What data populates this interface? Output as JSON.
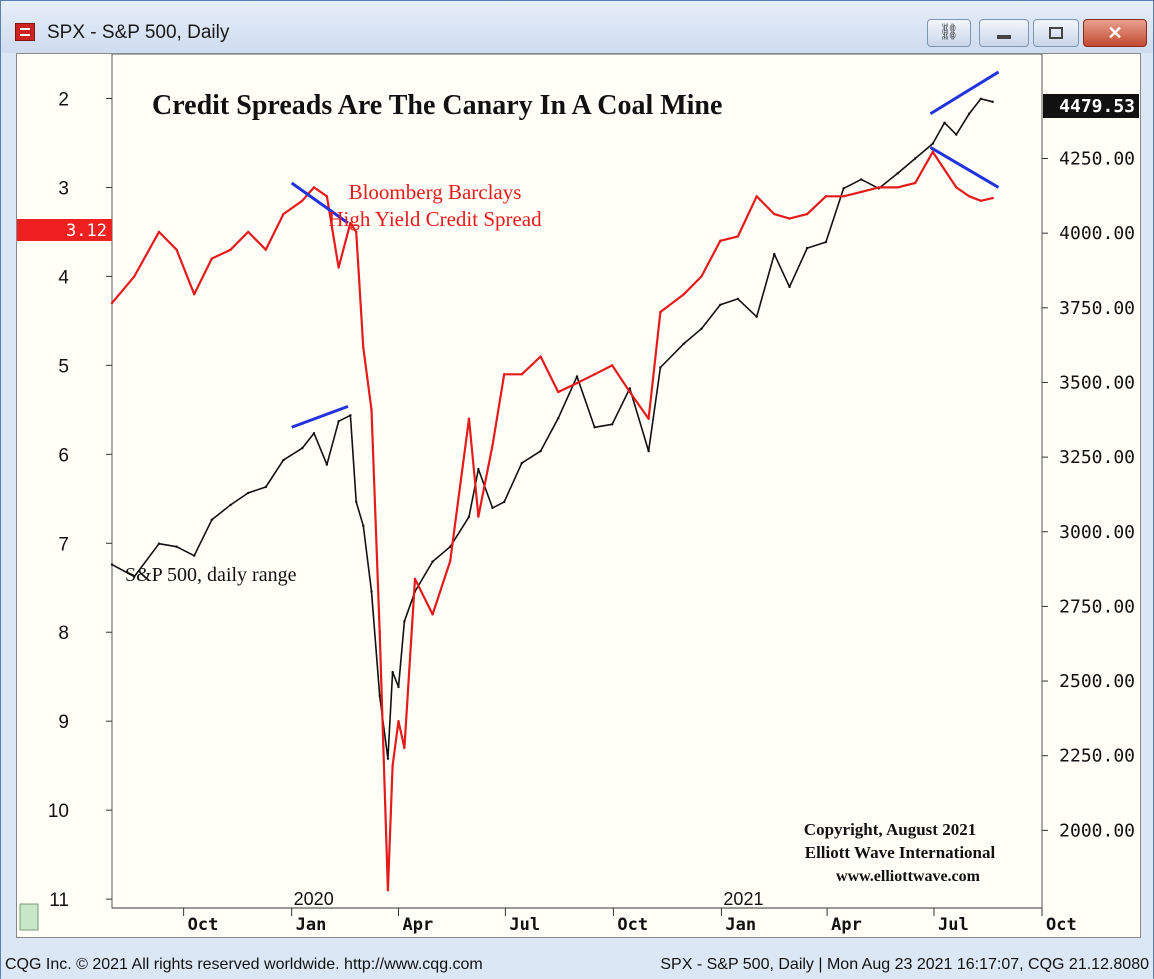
{
  "window": {
    "title": "SPX - S&P 500, Daily",
    "icons": [
      "chart-app-icon",
      "link-icon",
      "minimize-icon",
      "maximize-icon",
      "close-icon"
    ]
  },
  "status": {
    "left": "CQG Inc. © 2021 All rights reserved worldwide. http://www.cqg.com",
    "right": "SPX - S&P 500, Daily | Mon Aug 23 2021 16:17:07, CQG 21.12.8080"
  },
  "colors": {
    "spread_red": "#e41b1b",
    "spx_black": "#111111",
    "trendline_blue": "#2233dd",
    "price_box": "#111111",
    "spread_box": "#ee2020"
  },
  "chart_data": {
    "type": "line",
    "title": "Credit Spreads Are The Canary In A Coal Mine",
    "annotations": {
      "spread_label_1": "Bloomberg Barclays",
      "spread_label_2": "High Yield Credit Spread",
      "spx_label": "S&P 500, daily range",
      "copyright_1": "Copyright, August 2021",
      "copyright_2": "Elliott Wave International",
      "copyright_3": "www.elliottwave.com"
    },
    "x_tick_labels": [
      "Oct",
      "Jan",
      "Apr",
      "Jul",
      "Oct",
      "Jan",
      "Apr",
      "Jul",
      "Oct"
    ],
    "x_year_labels": [
      "2020",
      "2021"
    ],
    "x_range": [
      "2019-08",
      "2021-10"
    ],
    "left_axis": {
      "inverted": true,
      "range": [
        1.5,
        11.1
      ],
      "ticks": [
        "2",
        "3",
        "4",
        "5",
        "6",
        "7",
        "8",
        "9",
        "10",
        "11"
      ]
    },
    "right_axis": {
      "range": [
        1740,
        4600
      ],
      "ticks": [
        "4250.00",
        "4000.00",
        "3750.00",
        "3500.00",
        "3250.00",
        "3000.00",
        "2750.00",
        "2500.00",
        "2250.00",
        "2000.00"
      ]
    },
    "last_values": {
      "spx": "4479.53",
      "spread": "3.12"
    },
    "grid": false,
    "series": [
      {
        "name": "Bloomberg Barclays High Yield Credit Spread",
        "axis": "left",
        "x": [
          "2019-08-01",
          "2019-08-20",
          "2019-09-10",
          "2019-09-25",
          "2019-10-10",
          "2019-10-25",
          "2019-11-10",
          "2019-11-25",
          "2019-12-10",
          "2019-12-25",
          "2020-01-10",
          "2020-01-20",
          "2020-01-31",
          "2020-02-10",
          "2020-02-20",
          "2020-02-25",
          "2020-03-02",
          "2020-03-09",
          "2020-03-16",
          "2020-03-23",
          "2020-03-27",
          "2020-04-01",
          "2020-04-06",
          "2020-04-15",
          "2020-04-30",
          "2020-05-15",
          "2020-05-31",
          "2020-06-08",
          "2020-06-20",
          "2020-06-30",
          "2020-07-15",
          "2020-07-31",
          "2020-08-15",
          "2020-08-31",
          "2020-09-15",
          "2020-09-30",
          "2020-10-15",
          "2020-10-31",
          "2020-11-10",
          "2020-11-30",
          "2020-12-15",
          "2020-12-31",
          "2021-01-15",
          "2021-01-31",
          "2021-02-15",
          "2021-02-28",
          "2021-03-15",
          "2021-03-31",
          "2021-04-15",
          "2021-04-30",
          "2021-05-15",
          "2021-05-31",
          "2021-06-15",
          "2021-06-30",
          "2021-07-10",
          "2021-07-20",
          "2021-07-31",
          "2021-08-10",
          "2021-08-20"
        ],
        "values": [
          4.3,
          4.0,
          3.5,
          3.7,
          4.2,
          3.8,
          3.7,
          3.5,
          3.7,
          3.3,
          3.15,
          3.0,
          3.1,
          3.9,
          3.4,
          3.5,
          4.8,
          5.5,
          8.0,
          10.9,
          9.5,
          9.0,
          9.3,
          7.4,
          7.8,
          7.2,
          5.6,
          6.7,
          5.9,
          5.1,
          5.1,
          4.9,
          5.3,
          5.2,
          5.1,
          5.0,
          5.3,
          5.6,
          4.4,
          4.2,
          4.0,
          3.6,
          3.55,
          3.1,
          3.3,
          3.35,
          3.3,
          3.1,
          3.1,
          3.05,
          3.0,
          3.0,
          2.95,
          2.6,
          2.8,
          3.0,
          3.1,
          3.15,
          3.12
        ]
      },
      {
        "name": "S&P 500, daily range",
        "axis": "right",
        "x": [
          "2019-08-01",
          "2019-08-20",
          "2019-09-10",
          "2019-09-25",
          "2019-10-10",
          "2019-10-25",
          "2019-11-10",
          "2019-11-25",
          "2019-12-10",
          "2019-12-25",
          "2020-01-10",
          "2020-01-20",
          "2020-01-31",
          "2020-02-10",
          "2020-02-20",
          "2020-02-25",
          "2020-03-02",
          "2020-03-09",
          "2020-03-16",
          "2020-03-23",
          "2020-03-27",
          "2020-04-01",
          "2020-04-06",
          "2020-04-15",
          "2020-04-30",
          "2020-05-15",
          "2020-05-31",
          "2020-06-08",
          "2020-06-20",
          "2020-06-30",
          "2020-07-15",
          "2020-07-31",
          "2020-08-15",
          "2020-08-31",
          "2020-09-15",
          "2020-09-30",
          "2020-10-15",
          "2020-10-31",
          "2020-11-10",
          "2020-11-30",
          "2020-12-15",
          "2020-12-31",
          "2021-01-15",
          "2021-01-31",
          "2021-02-15",
          "2021-02-28",
          "2021-03-15",
          "2021-03-31",
          "2021-04-15",
          "2021-04-30",
          "2021-05-15",
          "2021-05-31",
          "2021-06-15",
          "2021-06-30",
          "2021-07-10",
          "2021-07-20",
          "2021-07-31",
          "2021-08-10",
          "2021-08-20"
        ],
        "values": [
          2890,
          2850,
          2960,
          2950,
          2920,
          3040,
          3090,
          3130,
          3150,
          3240,
          3280,
          3330,
          3225,
          3370,
          3390,
          3100,
          3020,
          2800,
          2450,
          2240,
          2530,
          2480,
          2700,
          2800,
          2900,
          2950,
          3050,
          3210,
          3080,
          3100,
          3230,
          3270,
          3380,
          3520,
          3350,
          3360,
          3480,
          3270,
          3550,
          3630,
          3680,
          3760,
          3780,
          3720,
          3930,
          3820,
          3950,
          3970,
          4150,
          4180,
          4150,
          4200,
          4250,
          4300,
          4370,
          4330,
          4400,
          4450,
          4440
        ]
      }
    ],
    "trendlines": [
      {
        "axis": "left",
        "from": [
          "2020-01-01",
          2.95
        ],
        "to": [
          "2020-02-18",
          3.4
        ]
      },
      {
        "axis": "right",
        "from": [
          "2020-01-01",
          3350
        ],
        "to": [
          "2020-02-18",
          3420
        ]
      },
      {
        "axis": "left",
        "from": [
          "2021-06-28",
          2.55
        ],
        "to": [
          "2021-08-25",
          3.0
        ]
      },
      {
        "axis": "right",
        "from": [
          "2021-06-28",
          4400
        ],
        "to": [
          "2021-08-25",
          4540
        ]
      }
    ]
  }
}
